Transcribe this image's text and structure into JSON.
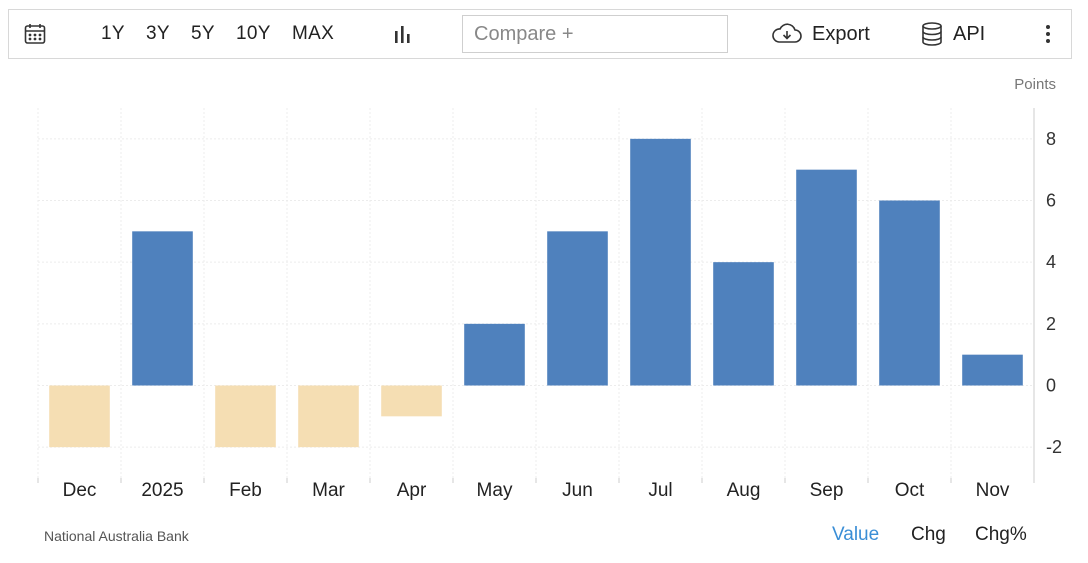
{
  "toolbar": {
    "ranges": [
      "1Y",
      "3Y",
      "5Y",
      "10Y",
      "MAX"
    ],
    "compare_placeholder": "Compare +",
    "export_label": "Export",
    "api_label": "API",
    "icons": [
      "calendar-icon",
      "bar-chart-icon",
      "cloud-download-icon",
      "database-icon",
      "more-vertical-icon"
    ]
  },
  "footer": {
    "source": "National Australia Bank",
    "modes": [
      "Value",
      "Chg",
      "Chg%"
    ],
    "active_mode": "Value",
    "active_color": "#3a8ed6"
  },
  "chart_data": {
    "type": "bar",
    "title": "",
    "unit_label": "Points",
    "categories": [
      "Dec",
      "2025",
      "Feb",
      "Mar",
      "Apr",
      "May",
      "Jun",
      "Jul",
      "Aug",
      "Sep",
      "Oct",
      "Nov"
    ],
    "values": [
      -2,
      5,
      -2,
      -2,
      -1,
      2,
      5,
      8,
      4,
      7,
      6,
      1
    ],
    "ylim": [
      -3,
      9
    ],
    "yticks": [
      8,
      6,
      4,
      2,
      0,
      -2
    ],
    "grid": true,
    "positive_color": "#4f81bd",
    "negative_color": "#f5deb3",
    "y_axis_side": "right"
  }
}
